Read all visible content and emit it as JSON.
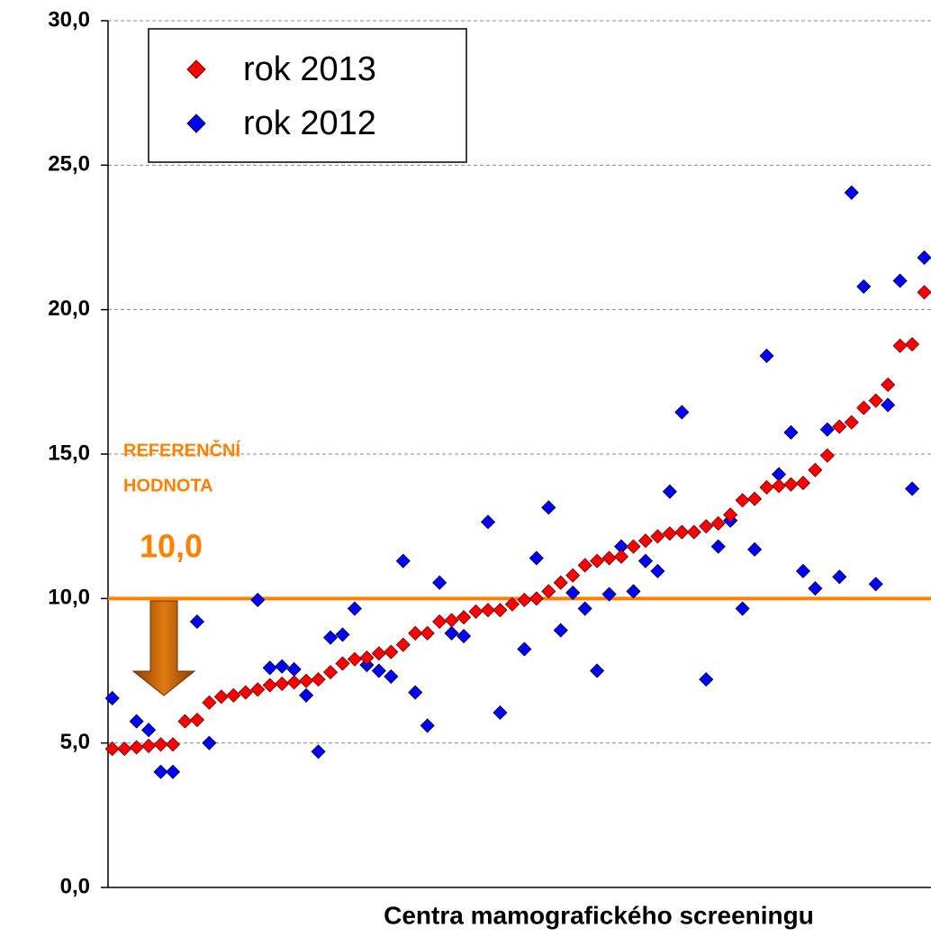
{
  "chart_data": {
    "type": "scatter",
    "x_label": "Centra mamografického screeningu",
    "categories": [
      null,
      null,
      null,
      null,
      null,
      null,
      null,
      null,
      null,
      null,
      null,
      null,
      null,
      null,
      null,
      null,
      null,
      null,
      null,
      null,
      null,
      null,
      null,
      null,
      null,
      null,
      null,
      null,
      null,
      null,
      null,
      null,
      null,
      null,
      null,
      null,
      null,
      null,
      null,
      null,
      null,
      null,
      null,
      null,
      null,
      null,
      null,
      null,
      null,
      null,
      null,
      null,
      null,
      null,
      null,
      null,
      null,
      null,
      null,
      null,
      null,
      null,
      null,
      null,
      null,
      null,
      null,
      null
    ],
    "series": [
      {
        "name": "rok 2013",
        "color": "#ff0000",
        "values": [
          4.8,
          4.8,
          4.85,
          4.9,
          4.95,
          4.95,
          5.75,
          5.8,
          6.4,
          6.6,
          6.65,
          6.75,
          6.85,
          7.0,
          7.05,
          7.1,
          7.15,
          7.2,
          7.45,
          7.75,
          7.9,
          7.95,
          8.1,
          8.15,
          8.4,
          8.8,
          8.8,
          9.2,
          9.25,
          9.35,
          9.55,
          9.6,
          9.6,
          9.8,
          9.95,
          10.0,
          10.25,
          10.55,
          10.8,
          11.15,
          11.3,
          11.4,
          11.45,
          11.8,
          12.0,
          12.15,
          12.25,
          12.3,
          12.3,
          12.5,
          12.6,
          12.9,
          13.4,
          13.45,
          13.85,
          13.9,
          13.95,
          14.0,
          14.45,
          14.95,
          15.95,
          16.1,
          16.6,
          16.85,
          17.4,
          18.75,
          18.8,
          20.6
        ]
      },
      {
        "name": "rok 2012",
        "color": "#0000ff",
        "values": [
          6.55,
          null,
          5.75,
          5.45,
          4.0,
          4.0,
          null,
          9.2,
          5.0,
          null,
          null,
          null,
          9.95,
          7.6,
          7.65,
          7.55,
          6.65,
          4.7,
          8.65,
          8.75,
          9.65,
          7.7,
          7.5,
          7.3,
          11.3,
          6.75,
          5.6,
          10.55,
          8.8,
          8.7,
          null,
          12.65,
          6.05,
          null,
          8.25,
          11.4,
          13.15,
          8.9,
          10.2,
          9.65,
          7.5,
          10.15,
          11.8,
          10.25,
          11.3,
          10.95,
          13.7,
          16.45,
          null,
          7.2,
          11.8,
          12.7,
          9.65,
          11.7,
          18.4,
          14.3,
          15.75,
          10.95,
          10.35,
          15.85,
          10.75,
          24.05,
          20.8,
          10.5,
          16.7,
          21.0,
          13.8,
          21.8
        ]
      }
    ],
    "ylim": [
      0,
      30
    ],
    "yticks": [
      {
        "value": 0,
        "label": "0,0"
      },
      {
        "value": 5,
        "label": "5,0"
      },
      {
        "value": 10,
        "label": "10,0"
      },
      {
        "value": 15,
        "label": "15,0"
      },
      {
        "value": 20,
        "label": "20,0"
      },
      {
        "value": 25,
        "label": "25,0"
      },
      {
        "value": 30,
        "label": "30,0"
      }
    ],
    "grid": true,
    "legend": "upper left",
    "reference": {
      "value": 10,
      "label": "10,0",
      "text": [
        "REFERENČNÍ",
        "HODNOTA"
      ],
      "color": "#ff8000"
    }
  }
}
